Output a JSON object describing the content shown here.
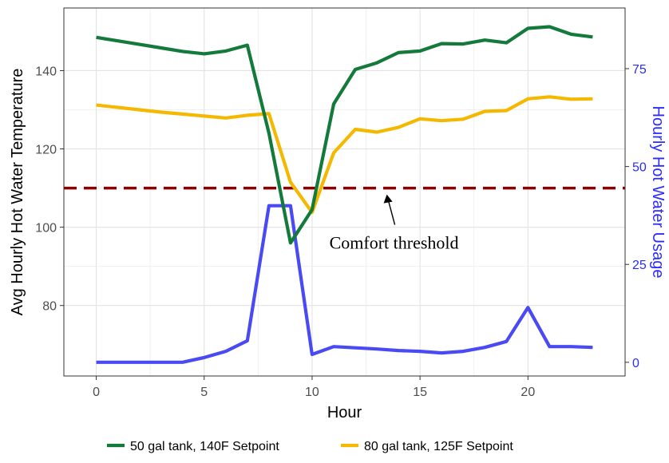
{
  "chart_data": {
    "type": "line",
    "xlabel": "Hour",
    "ylabel_left": "Avg Hourly Hot Water Temperature",
    "ylabel_right": "Hourly Hot Water Usage",
    "xlim": [
      -1.5,
      24.5
    ],
    "ylim_left": [
      62,
      156
    ],
    "ylim_right": [
      -3.5,
      90.5
    ],
    "x_ticks": [
      0,
      5,
      10,
      15,
      20
    ],
    "y_ticks_left": [
      80,
      100,
      120,
      140
    ],
    "y_ticks_right": [
      0,
      25,
      50,
      75
    ],
    "grid": true,
    "x": [
      0,
      1,
      2,
      3,
      4,
      5,
      6,
      7,
      8,
      9,
      10,
      11,
      12,
      13,
      14,
      15,
      16,
      17,
      18,
      19,
      20,
      21,
      22,
      23
    ],
    "series": [
      {
        "name": "50 gal tank, 140F Setpoint",
        "axis": "left",
        "color": "#137a3c",
        "values": [
          148.5,
          147.6,
          146.7,
          145.8,
          144.9,
          144.3,
          145.0,
          146.5,
          124.0,
          96.0,
          104.5,
          131.5,
          140.3,
          142.0,
          144.6,
          145.0,
          146.9,
          146.8,
          147.8,
          147.1,
          150.8,
          151.2,
          149.3,
          148.6
        ]
      },
      {
        "name": "80 gal tank, 125F Setpoint",
        "axis": "left",
        "color": "#f5b800",
        "values": [
          131.2,
          130.6,
          130.0,
          129.4,
          128.9,
          128.4,
          127.9,
          128.6,
          129.0,
          111.5,
          103.8,
          119.0,
          125.0,
          124.3,
          125.5,
          127.7,
          127.2,
          127.6,
          129.6,
          129.8,
          132.8,
          133.3,
          132.7,
          132.8
        ]
      },
      {
        "name": "Hourly Hot Water Usage",
        "axis": "right",
        "color": "#4a4af5",
        "values": [
          0,
          0,
          0,
          0,
          0,
          1.2,
          2.8,
          5.5,
          40.0,
          40.0,
          2.0,
          4.0,
          3.7,
          3.4,
          3.0,
          2.8,
          2.4,
          2.8,
          3.8,
          5.3,
          14.0,
          4.0,
          4.0,
          3.8
        ]
      }
    ],
    "reference_line": {
      "axis": "left",
      "value": 110,
      "color": "#8b0000",
      "style": "dashed"
    },
    "annotation": {
      "text": "Comfort threshold",
      "points_to_x": 13.5,
      "points_to_y": 110
    },
    "legend": {
      "position": "bottom",
      "entries": [
        "50 gal tank, 140F Setpoint",
        "80 gal tank, 125F Setpoint"
      ]
    },
    "right_axis_color": "#2b2bff"
  }
}
